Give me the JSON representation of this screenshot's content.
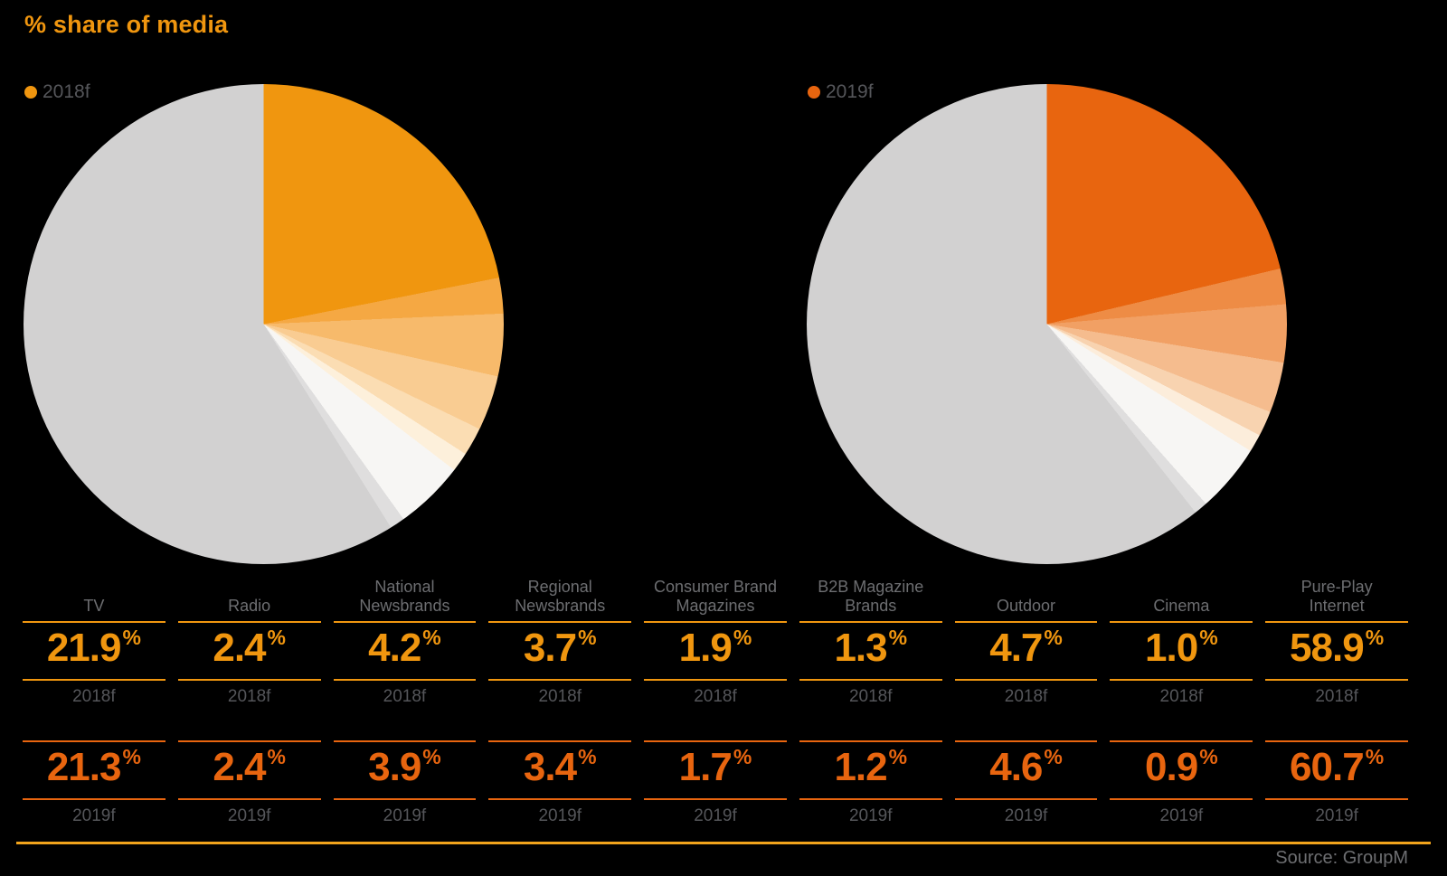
{
  "title": "% share of media",
  "source": "Source: GroupM",
  "colors": {
    "background": "#000000",
    "accent_2018": "#F0960F",
    "accent_2019": "#E8650F",
    "category_text": "#6D6E71",
    "year_text": "#55565A",
    "source_text": "#6D6E71",
    "bottom_rule": "#F2A41C",
    "pie_other_gray": "#D2D1D1"
  },
  "chart_data": {
    "type": "pie",
    "title": "% share of media",
    "unit": "%",
    "start_angle": "top",
    "direction": "clockwise",
    "legend_position": "top-left of each pie",
    "categories": [
      "TV",
      "Radio",
      "National Newsbrands",
      "Regional Newsbrands",
      "Consumer Brand Magazines",
      "B2B Magazine Brands",
      "Outdoor",
      "Cinema",
      "Pure-Play Internet"
    ],
    "series": [
      {
        "name": "2018f",
        "values": [
          21.9,
          2.4,
          4.2,
          3.7,
          1.9,
          1.3,
          4.7,
          1.0,
          58.9
        ],
        "slice_colors": [
          "#F0960F",
          "#F5A843",
          "#F7BA6B",
          "#F9CC92",
          "#FBDDB3",
          "#FDF0DB",
          "#F7F6F4",
          "#DFDEDE",
          "#D2D1D1"
        ]
      },
      {
        "name": "2019f",
        "values": [
          21.3,
          2.4,
          3.9,
          3.4,
          1.7,
          1.2,
          4.6,
          0.9,
          60.7
        ],
        "slice_colors": [
          "#E8650F",
          "#EE8C45",
          "#F1A064",
          "#F5BC8E",
          "#F8D3B0",
          "#FCEDDB",
          "#F7F6F4",
          "#DFDEDE",
          "#D2D1D1"
        ]
      }
    ]
  },
  "table": {
    "percent_sign": "%",
    "year_labels": [
      "2018f",
      "2019f"
    ],
    "columns": [
      {
        "label": "TV",
        "values": [
          "21.9",
          "21.3"
        ]
      },
      {
        "label": "Radio",
        "values": [
          "2.4",
          "2.4"
        ]
      },
      {
        "label": "National\nNewsbrands",
        "values": [
          "4.2",
          "3.9"
        ]
      },
      {
        "label": "Regional\nNewsbrands",
        "values": [
          "3.7",
          "3.4"
        ]
      },
      {
        "label": "Consumer Brand\nMagazines",
        "values": [
          "1.9",
          "1.7"
        ]
      },
      {
        "label": "B2B Magazine\nBrands",
        "values": [
          "1.3",
          "1.2"
        ]
      },
      {
        "label": "Outdoor",
        "values": [
          "4.7",
          "4.6"
        ]
      },
      {
        "label": "Cinema",
        "values": [
          "1.0",
          "0.9"
        ]
      },
      {
        "label": "Pure-Play\nInternet",
        "values": [
          "58.9",
          "60.7"
        ]
      }
    ]
  }
}
